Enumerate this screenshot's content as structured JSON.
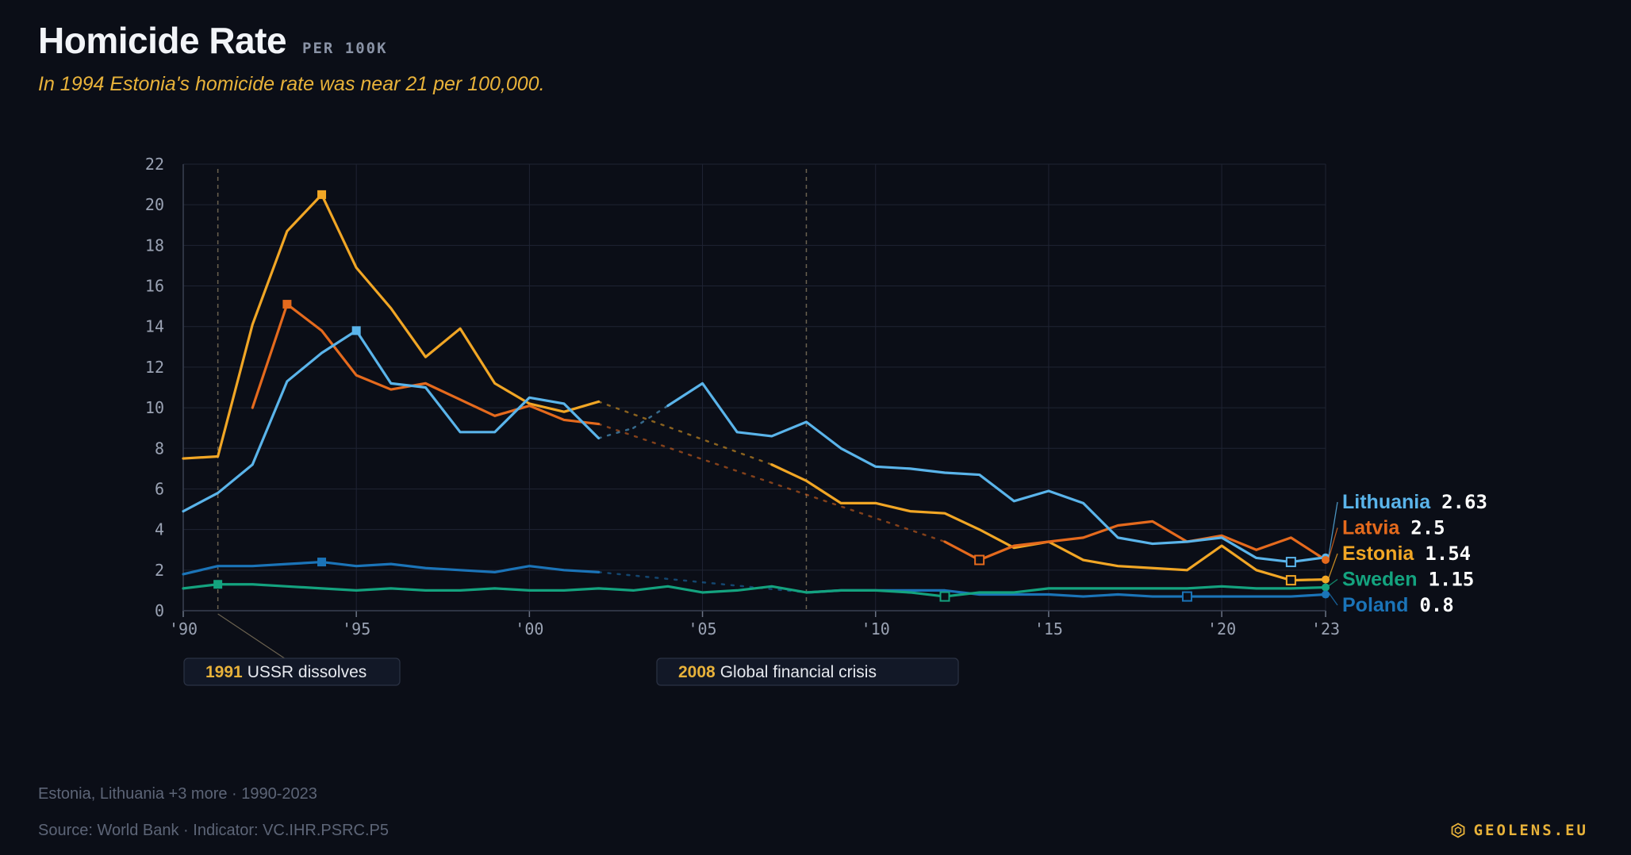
{
  "header": {
    "title": "Homicide Rate",
    "unit": "PER 100K",
    "subtitle": "In 1994 Estonia's homicide rate was near 21 per 100,000."
  },
  "footer": {
    "selection": "Estonia, Lithuania +3 more · 1990-2023",
    "source": "Source: World Bank · Indicator: VC.IHR.PSRC.P5",
    "brand": "GEOLENS.EU",
    "brand_icon": "hexagon-logo-icon"
  },
  "colors": {
    "background": "#0b0e17",
    "grid": "#1f2433",
    "tick": "#9aa2b3",
    "accent": "#e8b23a"
  },
  "chart_data": {
    "type": "line",
    "title": "Homicide Rate",
    "xlim": [
      1990,
      2023
    ],
    "ylim": [
      0,
      22
    ],
    "yticks": [
      0,
      2,
      4,
      6,
      8,
      10,
      12,
      14,
      16,
      18,
      20,
      22
    ],
    "xticks": [
      {
        "value": 1990,
        "label": "'90"
      },
      {
        "value": 1995,
        "label": "'95"
      },
      {
        "value": 2000,
        "label": "'00"
      },
      {
        "value": 2005,
        "label": "'05"
      },
      {
        "value": 2010,
        "label": "'10"
      },
      {
        "value": 2015,
        "label": "'15"
      },
      {
        "value": 2020,
        "label": "'20"
      },
      {
        "value": 2023,
        "label": "'23"
      }
    ],
    "grid": true,
    "legend": "right end labels",
    "series": [
      {
        "name": "Lithuania",
        "color": "#5ab4ea",
        "latest": "2.63",
        "peak_year": 1995,
        "low_year": 2022,
        "points": [
          [
            1990,
            4.9
          ],
          [
            1991,
            5.8
          ],
          [
            1992,
            7.2
          ],
          [
            1993,
            11.3
          ],
          [
            1994,
            12.7
          ],
          [
            1995,
            13.8
          ],
          [
            1996,
            11.2
          ],
          [
            1997,
            11.0
          ],
          [
            1998,
            8.8
          ],
          [
            1999,
            8.8
          ],
          [
            2000,
            10.5
          ],
          [
            2001,
            10.2
          ],
          [
            2002,
            8.5
          ],
          [
            2003,
            9.0
          ],
          [
            2004,
            10.1
          ],
          [
            2005,
            11.2
          ],
          [
            2006,
            8.8
          ],
          [
            2007,
            8.6
          ],
          [
            2008,
            9.3
          ],
          [
            2009,
            8.0
          ],
          [
            2010,
            7.1
          ],
          [
            2011,
            7.0
          ],
          [
            2012,
            6.8
          ],
          [
            2013,
            6.7
          ],
          [
            2014,
            5.4
          ],
          [
            2015,
            5.9
          ],
          [
            2016,
            5.3
          ],
          [
            2017,
            3.6
          ],
          [
            2018,
            3.3
          ],
          [
            2019,
            3.4
          ],
          [
            2020,
            3.6
          ],
          [
            2021,
            2.6
          ],
          [
            2022,
            2.4
          ],
          [
            2023,
            2.63
          ]
        ],
        "dotted_ranges": [
          [
            2002,
            2004
          ]
        ]
      },
      {
        "name": "Latvia",
        "color": "#e56a1d",
        "latest": "2.5",
        "peak_year": 1993,
        "low_year": 2013,
        "points": [
          [
            1992,
            10.0
          ],
          [
            1993,
            15.1
          ],
          [
            1994,
            13.8
          ],
          [
            1995,
            11.6
          ],
          [
            1996,
            10.9
          ],
          [
            1997,
            11.2
          ],
          [
            1998,
            10.4
          ],
          [
            1999,
            9.6
          ],
          [
            2000,
            10.1
          ],
          [
            2001,
            9.4
          ],
          [
            2002,
            9.2
          ],
          [
            2012,
            3.4
          ],
          [
            2013,
            2.5
          ],
          [
            2014,
            3.2
          ],
          [
            2015,
            3.4
          ],
          [
            2016,
            3.6
          ],
          [
            2017,
            4.2
          ],
          [
            2018,
            4.4
          ],
          [
            2019,
            3.4
          ],
          [
            2020,
            3.7
          ],
          [
            2021,
            3.0
          ],
          [
            2022,
            3.6
          ],
          [
            2023,
            2.5
          ]
        ],
        "dotted_ranges": [
          [
            2002,
            2012
          ]
        ]
      },
      {
        "name": "Estonia",
        "color": "#f1a625",
        "latest": "1.54",
        "peak_year": 1994,
        "low_year": 2022,
        "points": [
          [
            1990,
            7.5
          ],
          [
            1991,
            7.6
          ],
          [
            1992,
            14.1
          ],
          [
            1993,
            18.7
          ],
          [
            1994,
            20.5
          ],
          [
            1995,
            16.9
          ],
          [
            1996,
            14.9
          ],
          [
            1997,
            12.5
          ],
          [
            1998,
            13.9
          ],
          [
            1999,
            11.2
          ],
          [
            2000,
            10.2
          ],
          [
            2001,
            9.8
          ],
          [
            2002,
            10.3
          ],
          [
            2007,
            7.2
          ],
          [
            2008,
            6.4
          ],
          [
            2009,
            5.3
          ],
          [
            2010,
            5.3
          ],
          [
            2011,
            4.9
          ],
          [
            2012,
            4.8
          ],
          [
            2013,
            4.0
          ],
          [
            2014,
            3.1
          ],
          [
            2015,
            3.4
          ],
          [
            2016,
            2.5
          ],
          [
            2017,
            2.2
          ],
          [
            2018,
            2.1
          ],
          [
            2019,
            2.0
          ],
          [
            2020,
            3.2
          ],
          [
            2021,
            2.0
          ],
          [
            2022,
            1.5
          ],
          [
            2023,
            1.54
          ]
        ],
        "dotted_ranges": [
          [
            2002,
            2007
          ]
        ]
      },
      {
        "name": "Sweden",
        "color": "#14a37f",
        "latest": "1.15",
        "peak_year": 1991,
        "low_year": 2012,
        "points": [
          [
            1990,
            1.1
          ],
          [
            1991,
            1.3
          ],
          [
            1992,
            1.3
          ],
          [
            1993,
            1.2
          ],
          [
            1994,
            1.1
          ],
          [
            1995,
            1.0
          ],
          [
            1996,
            1.1
          ],
          [
            1997,
            1.0
          ],
          [
            1998,
            1.0
          ],
          [
            1999,
            1.1
          ],
          [
            2000,
            1.0
          ],
          [
            2001,
            1.0
          ],
          [
            2002,
            1.1
          ],
          [
            2003,
            1.0
          ],
          [
            2004,
            1.2
          ],
          [
            2005,
            0.9
          ],
          [
            2006,
            1.0
          ],
          [
            2007,
            1.2
          ],
          [
            2008,
            0.9
          ],
          [
            2009,
            1.0
          ],
          [
            2010,
            1.0
          ],
          [
            2011,
            0.9
          ],
          [
            2012,
            0.7
          ],
          [
            2013,
            0.9
          ],
          [
            2014,
            0.9
          ],
          [
            2015,
            1.1
          ],
          [
            2016,
            1.1
          ],
          [
            2017,
            1.1
          ],
          [
            2018,
            1.1
          ],
          [
            2019,
            1.1
          ],
          [
            2020,
            1.2
          ],
          [
            2021,
            1.1
          ],
          [
            2022,
            1.1
          ],
          [
            2023,
            1.15
          ]
        ],
        "dotted_ranges": []
      },
      {
        "name": "Poland",
        "color": "#1b74b8",
        "latest": "0.8",
        "peak_year": 1994,
        "low_year": 2019,
        "points": [
          [
            1990,
            1.8
          ],
          [
            1991,
            2.2
          ],
          [
            1992,
            2.2
          ],
          [
            1993,
            2.3
          ],
          [
            1994,
            2.4
          ],
          [
            1995,
            2.2
          ],
          [
            1996,
            2.3
          ],
          [
            1997,
            2.1
          ],
          [
            1998,
            2.0
          ],
          [
            1999,
            1.9
          ],
          [
            2000,
            2.2
          ],
          [
            2001,
            2.0
          ],
          [
            2002,
            1.9
          ],
          [
            2008,
            0.9
          ],
          [
            2009,
            1.0
          ],
          [
            2010,
            1.0
          ],
          [
            2011,
            1.0
          ],
          [
            2012,
            1.0
          ],
          [
            2013,
            0.8
          ],
          [
            2014,
            0.8
          ],
          [
            2015,
            0.8
          ],
          [
            2016,
            0.7
          ],
          [
            2017,
            0.8
          ],
          [
            2018,
            0.7
          ],
          [
            2019,
            0.7
          ],
          [
            2020,
            0.7
          ],
          [
            2021,
            0.7
          ],
          [
            2022,
            0.7
          ],
          [
            2023,
            0.8
          ]
        ],
        "dotted_ranges": [
          [
            2002,
            2008
          ]
        ]
      }
    ],
    "events": [
      {
        "year": 1991,
        "year_label": "1991",
        "label": "USSR dissolves"
      },
      {
        "year": 2008,
        "year_label": "2008",
        "label": "Global financial crisis"
      }
    ]
  }
}
